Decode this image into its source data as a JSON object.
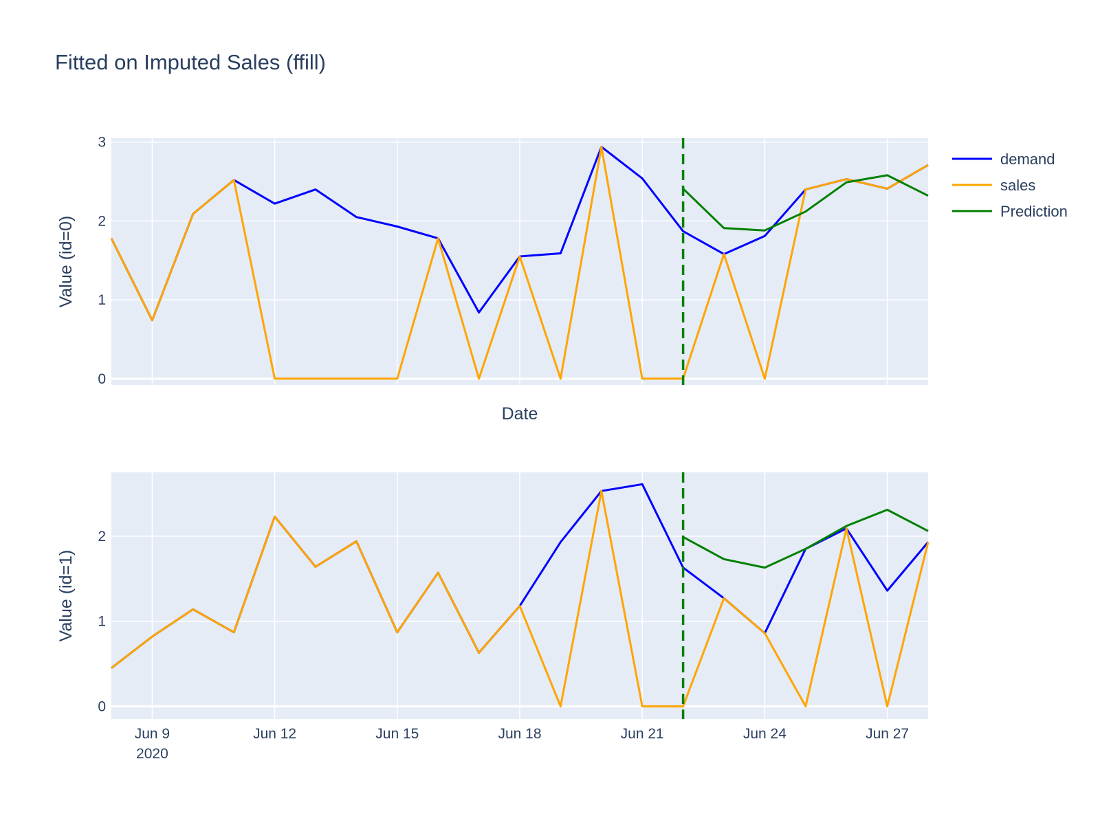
{
  "title": "Fitted on Imputed Sales (ffill)",
  "colors": {
    "demand": "#0000ff",
    "sales": "#ffa500",
    "prediction": "#008000",
    "plot_bg": "#e5ecf6",
    "grid": "#ffffff",
    "text": "#2a3f5f"
  },
  "chart_data": {
    "type": "line",
    "x": [
      "2020-06-08",
      "2020-06-09",
      "2020-06-10",
      "2020-06-11",
      "2020-06-12",
      "2020-06-13",
      "2020-06-14",
      "2020-06-15",
      "2020-06-16",
      "2020-06-17",
      "2020-06-18",
      "2020-06-19",
      "2020-06-20",
      "2020-06-21",
      "2020-06-22",
      "2020-06-23",
      "2020-06-24",
      "2020-06-25",
      "2020-06-26",
      "2020-06-27",
      "2020-06-28"
    ],
    "xlim": [
      "2020-06-08",
      "2020-06-28"
    ],
    "x_ticks": [
      {
        "date": "2020-06-09",
        "label": "Jun 9",
        "sublabel": "2020"
      },
      {
        "date": "2020-06-12",
        "label": "Jun 12"
      },
      {
        "date": "2020-06-15",
        "label": "Jun 15"
      },
      {
        "date": "2020-06-18",
        "label": "Jun 18"
      },
      {
        "date": "2020-06-21",
        "label": "Jun 21"
      },
      {
        "date": "2020-06-24",
        "label": "Jun 24"
      },
      {
        "date": "2020-06-27",
        "label": "Jun 27"
      }
    ],
    "forecast_start": "2020-06-22",
    "legend": {
      "position": "top-right",
      "entries": [
        "demand",
        "sales",
        "Prediction"
      ]
    },
    "grid": true,
    "subplots": [
      {
        "ylabel": "Value (id=0)",
        "xlabel": "Date",
        "ylim": [
          -0.08,
          3.05
        ],
        "y_ticks": [
          0,
          1,
          2,
          3
        ],
        "series": [
          {
            "name": "demand",
            "color_key": "demand",
            "x_range": [
              0,
              20
            ],
            "values": [
              1.78,
              0.74,
              2.09,
              2.52,
              2.22,
              2.4,
              2.05,
              1.93,
              1.78,
              0.84,
              1.55,
              1.59,
              2.94,
              2.54,
              1.87,
              1.58,
              1.81,
              2.4,
              2.53,
              2.41,
              2.71
            ]
          },
          {
            "name": "sales",
            "color_key": "sales",
            "x_range": [
              0,
              20
            ],
            "values": [
              1.78,
              0.74,
              2.09,
              2.52,
              0,
              0,
              0,
              0,
              1.78,
              0,
              1.55,
              0,
              2.94,
              0,
              0,
              1.58,
              0,
              2.4,
              2.53,
              2.41,
              2.71
            ]
          },
          {
            "name": "Prediction",
            "color_key": "prediction",
            "x_range": [
              14,
              20
            ],
            "values": [
              2.41,
              1.91,
              1.88,
              2.12,
              2.49,
              2.58,
              2.32
            ]
          }
        ]
      },
      {
        "ylabel": "Value (id=1)",
        "ylim": [
          -0.15,
          2.75
        ],
        "y_ticks": [
          0,
          1,
          2
        ],
        "series": [
          {
            "name": "demand",
            "color_key": "demand",
            "x_range": [
              0,
              20
            ],
            "values": [
              0.45,
              0.82,
              1.14,
              0.87,
              2.23,
              1.64,
              1.94,
              0.87,
              1.57,
              0.63,
              1.18,
              1.93,
              2.53,
              2.61,
              1.63,
              1.27,
              0.86,
              1.85,
              2.09,
              1.36,
              1.93
            ]
          },
          {
            "name": "sales",
            "color_key": "sales",
            "x_range": [
              0,
              20
            ],
            "values": [
              0.45,
              0.82,
              1.14,
              0.87,
              2.23,
              1.64,
              1.94,
              0.87,
              1.57,
              0.63,
              1.18,
              0,
              2.53,
              0,
              0,
              1.27,
              0.86,
              0,
              2.09,
              0,
              1.93
            ]
          },
          {
            "name": "Prediction",
            "color_key": "prediction",
            "x_range": [
              14,
              20
            ],
            "values": [
              1.99,
              1.73,
              1.63,
              1.85,
              2.12,
              2.31,
              2.06
            ]
          }
        ]
      }
    ]
  }
}
